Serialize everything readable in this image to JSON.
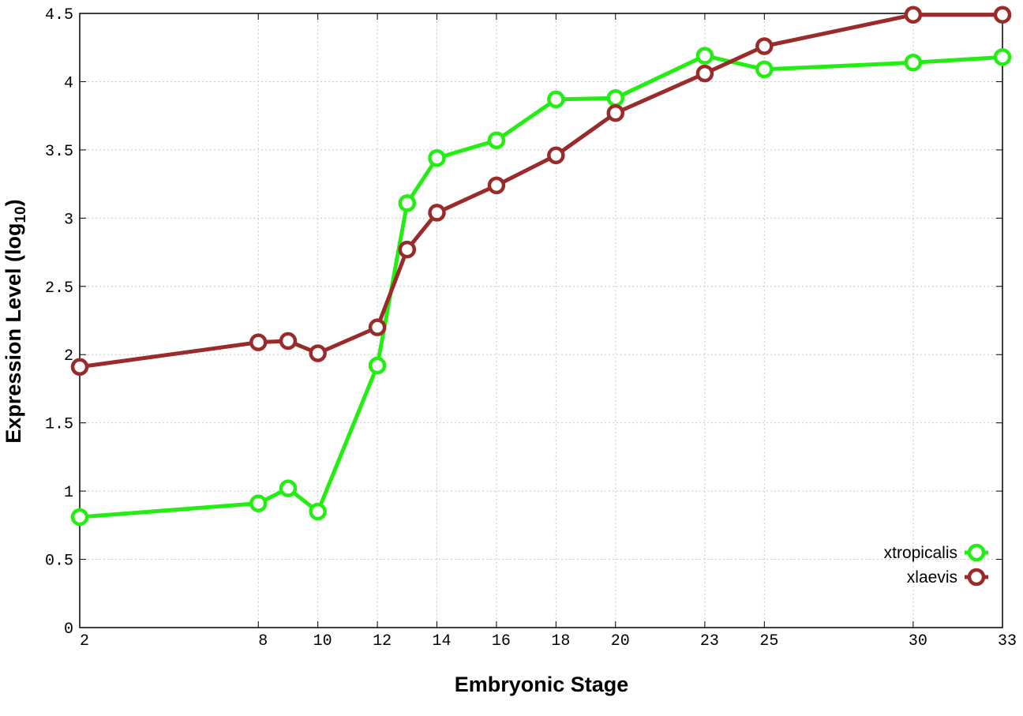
{
  "chart_data": {
    "type": "line",
    "title": "",
    "xlabel": "Embryonic Stage",
    "ylabel_main": "Expression Level (log",
    "ylabel_sub": "10",
    "ylabel_close": ")",
    "x": [
      2,
      8,
      9,
      10,
      12,
      13,
      14,
      16,
      18,
      20,
      23,
      25,
      30,
      33
    ],
    "x_tick_values": [
      2,
      8,
      10,
      12,
      14,
      16,
      18,
      20,
      23,
      25,
      30,
      33
    ],
    "x_tick_labels": [
      "2",
      "8",
      "10",
      "12",
      "14",
      "16",
      "18",
      "20",
      "23",
      "25",
      "30",
      "33"
    ],
    "xlim": [
      2,
      33
    ],
    "ylim": [
      0,
      4.5
    ],
    "y_tick_values": [
      0,
      0.5,
      1,
      1.5,
      2,
      2.5,
      3,
      3.5,
      4,
      4.5
    ],
    "y_tick_labels": [
      "0",
      "0.5",
      "1",
      "1.5",
      "2",
      "2.5",
      "3",
      "3.5",
      "4",
      "4.5"
    ],
    "grid": true,
    "legend_position": "bottom-right",
    "series": [
      {
        "name": "xtropicalis",
        "color": "#22ee11",
        "values": [
          0.81,
          0.91,
          1.02,
          0.85,
          1.92,
          3.11,
          3.44,
          3.57,
          3.87,
          3.88,
          4.19,
          4.09,
          4.14,
          4.18
        ]
      },
      {
        "name": "xlaevis",
        "color": "#9a2b2b",
        "values": [
          1.91,
          2.09,
          2.1,
          2.01,
          2.2,
          2.77,
          3.04,
          3.24,
          3.46,
          3.77,
          4.06,
          4.26,
          4.49,
          4.49
        ]
      }
    ]
  }
}
